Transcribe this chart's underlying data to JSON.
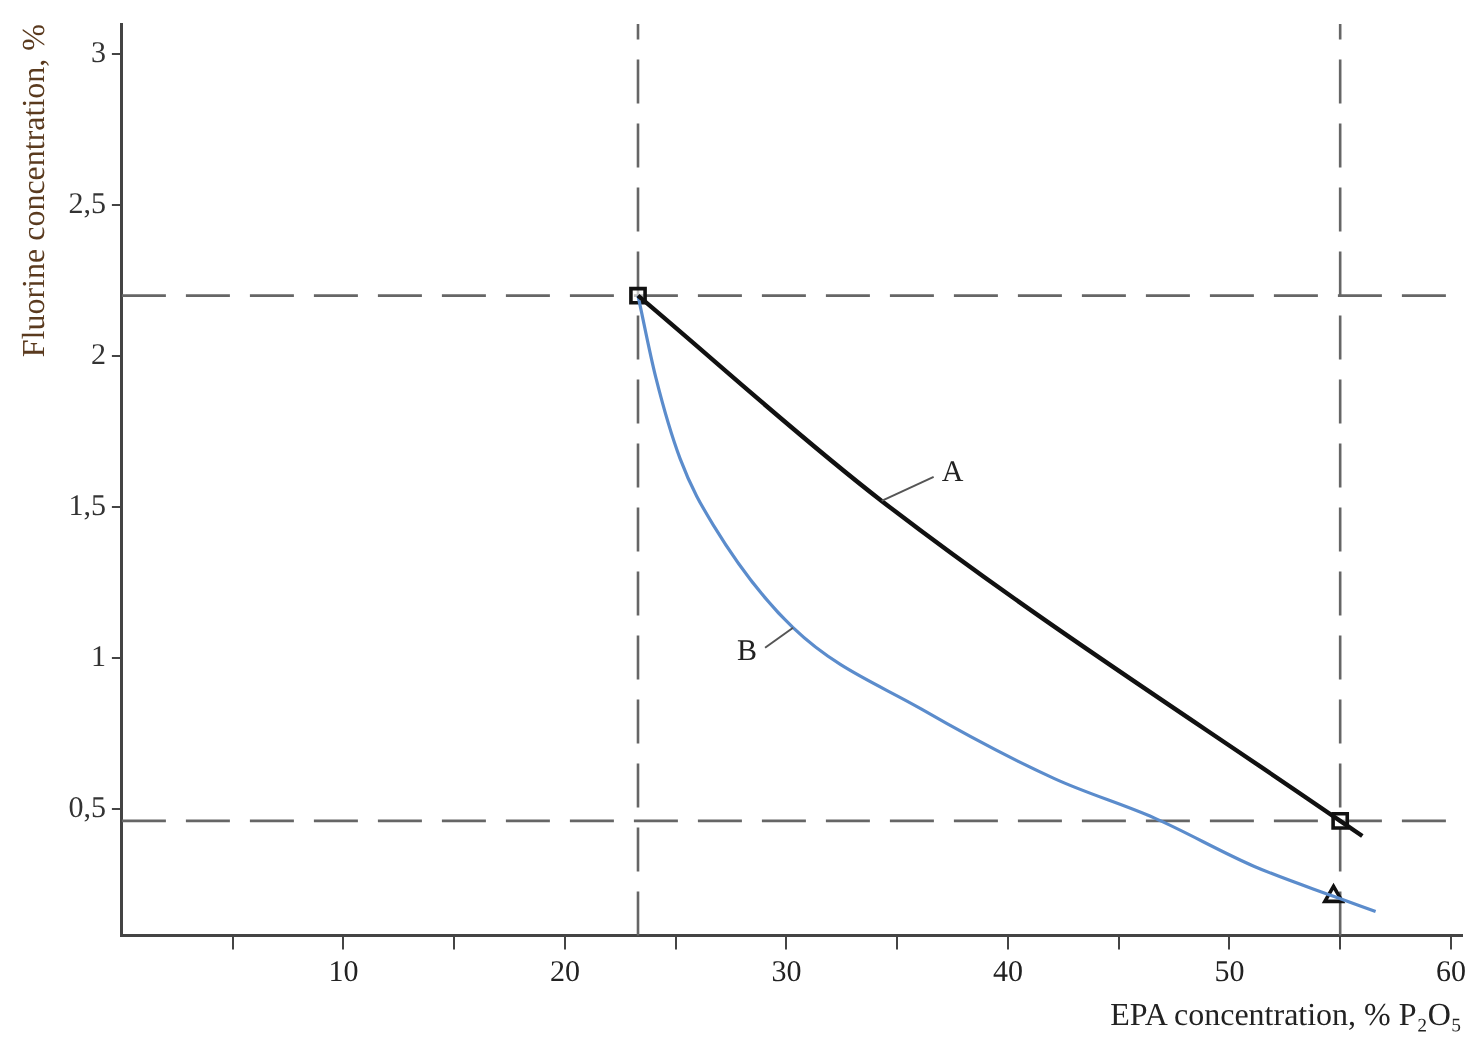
{
  "chart_data": {
    "type": "line",
    "xlabel": "EPA concentration, % P₂O₅",
    "ylabel": "Fluorine concentration, %",
    "xlim": [
      0,
      60.5
    ],
    "ylim": [
      0.08,
      3.1
    ],
    "xticks": [
      {
        "value": 5,
        "label": null
      },
      10,
      {
        "value": 15,
        "label": null
      },
      20,
      {
        "value": 25,
        "label": null
      },
      30,
      {
        "value": 35,
        "label": null
      },
      40,
      {
        "value": 45,
        "label": null
      },
      50,
      {
        "value": 55,
        "label": null
      },
      60
    ],
    "yticks": [
      {
        "value": 0.5,
        "label": "0,5"
      },
      1,
      {
        "value": 1.5,
        "label": "1,5"
      },
      2,
      {
        "value": 2.5,
        "label": "2,5"
      },
      3
    ],
    "grid": false,
    "legend": false,
    "marker": "none",
    "line_style": "solid",
    "ref_lines": [
      {
        "axis": "y",
        "value": 2.2,
        "color": "#666666",
        "line_style": "dashed"
      },
      {
        "axis": "y",
        "value": 0.46,
        "color": "#666666",
        "line_style": "dashed"
      },
      {
        "axis": "x",
        "value": 23.3,
        "color": "#666666",
        "line_style": "dashed"
      },
      {
        "axis": "x",
        "value": 55,
        "color": "#666666",
        "line_style": "dashed"
      }
    ],
    "series": [
      {
        "name": "A",
        "color": "#111111",
        "x": [
          23.3,
          34.3,
          55,
          56
        ],
        "values": [
          2.2,
          1.52,
          0.46,
          0.41
        ]
      },
      {
        "name": "B",
        "color": "#5b8ccc",
        "x": [
          23.3,
          24.1,
          25.2,
          26.7,
          30.3,
          36.1,
          42.1,
          46.6,
          51.1,
          54.7,
          56.6
        ],
        "values": [
          2.2,
          1.93,
          1.66,
          1.44,
          1.1,
          0.83,
          0.6,
          0.47,
          0.31,
          0.21,
          0.16
        ]
      },
      {
        "type": "scatter",
        "color": "#111111",
        "marker": "square",
        "x": [
          23.3,
          55
        ],
        "values": [
          2.2,
          0.46
        ]
      },
      {
        "type": "scatter",
        "color": "#111111",
        "marker": "triangle",
        "x": [
          54.7
        ],
        "values": [
          0.21
        ]
      }
    ]
  }
}
